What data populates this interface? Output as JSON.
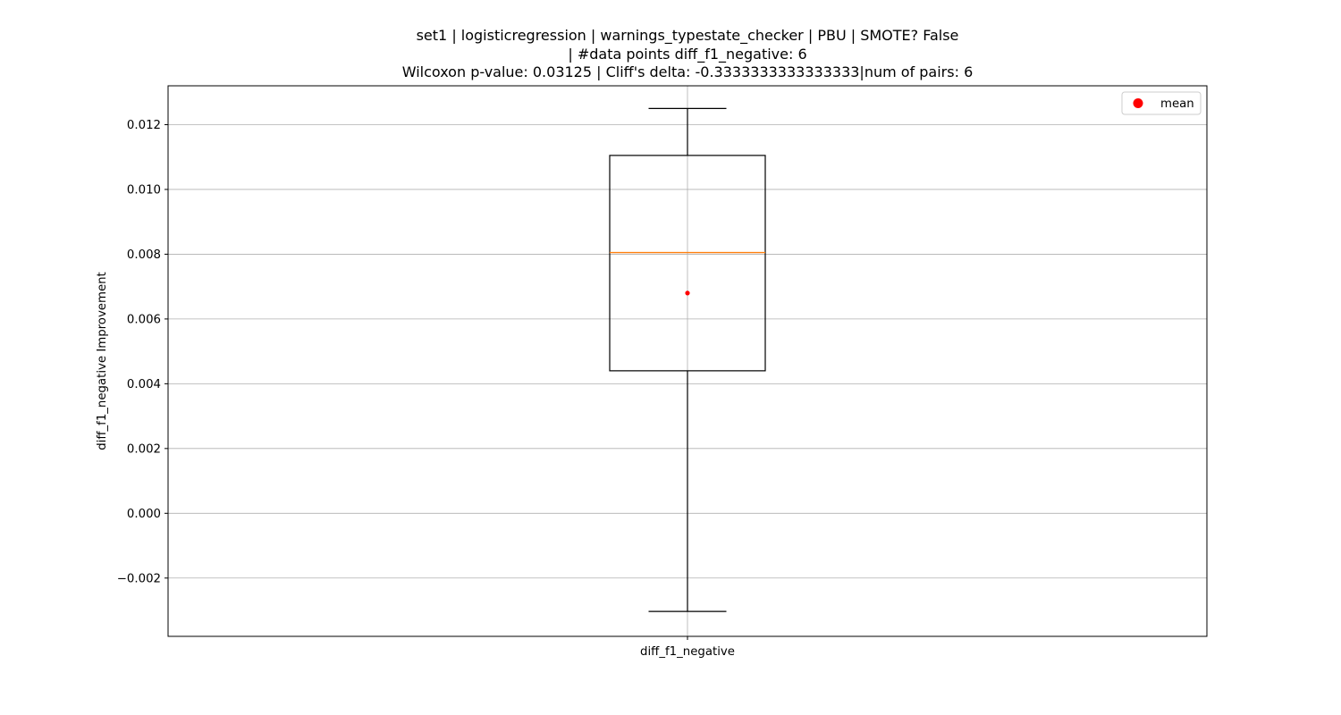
{
  "chart_data": {
    "type": "box",
    "title_lines": [
      "set1 | logisticregression | warnings_typestate_checker | PBU | SMOTE? False",
      "| #data points diff_f1_negative: 6",
      "Wilcoxon p-value: 0.03125 | Cliff's delta: -0.3333333333333333|num of pairs: 6"
    ],
    "xlabel": "",
    "ylabel": "diff_f1_negative Improvement",
    "categories": [
      "diff_f1_negative"
    ],
    "ylim": [
      -0.0038,
      0.0132
    ],
    "yticks": [
      -0.002,
      0.0,
      0.002,
      0.004,
      0.006,
      0.008,
      0.01,
      0.012
    ],
    "ytick_labels": [
      "−0.002",
      "0.000",
      "0.002",
      "0.004",
      "0.006",
      "0.008",
      "0.010",
      "0.012"
    ],
    "grid": true,
    "legend": {
      "entries": [
        "mean"
      ],
      "placement": "top-right"
    },
    "colors": {
      "box": "#000000",
      "median": "#ff7f0e",
      "mean": "#ff0000",
      "grid": "#b0b0b0"
    },
    "series": [
      {
        "category": "diff_f1_negative",
        "whisker_low": -0.00303,
        "q1": 0.0044,
        "median": 0.00805,
        "q3": 0.01105,
        "whisker_high": 0.0125,
        "mean": 0.0068
      }
    ]
  }
}
